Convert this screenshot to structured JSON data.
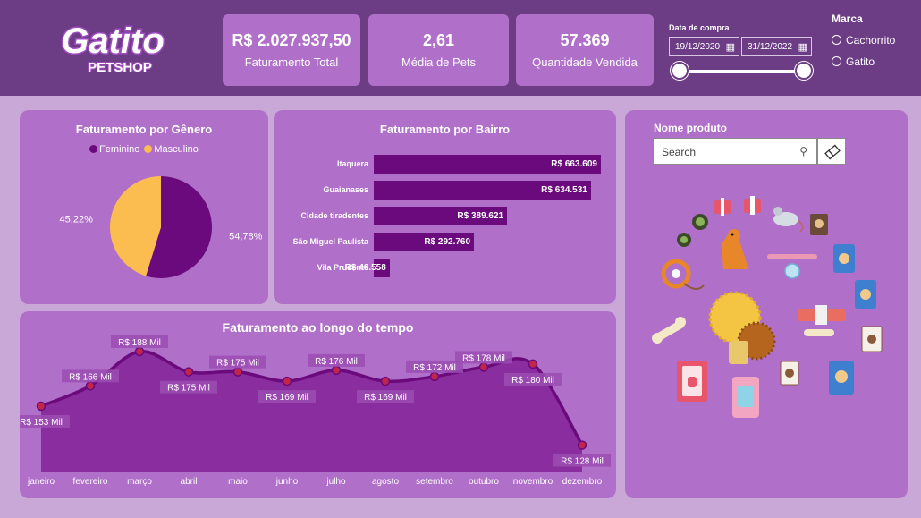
{
  "logo": {
    "name": "Gatito",
    "sub": "PETSHOP"
  },
  "kpis": [
    {
      "value": "R$ 2.027.937,50",
      "label": "Faturamento Total"
    },
    {
      "value": "2,61",
      "label": "Média de Pets"
    },
    {
      "value": "57.369",
      "label": "Quantidade Vendida"
    }
  ],
  "date_filter": {
    "title": "Data de compra",
    "start": "19/12/2020",
    "end": "31/12/2022"
  },
  "marca": {
    "title": "Marca",
    "options": [
      "Cachorrito",
      "Gatito"
    ]
  },
  "genero_card": {
    "title": "Faturamento por Gênero"
  },
  "bairro_card": {
    "title": "Faturamento por Bairro"
  },
  "tempo_card": {
    "title": "Faturamento ao longo do tempo"
  },
  "produto_panel": {
    "title": "Nome produto",
    "search_placeholder": "Search"
  },
  "colors": {
    "header": "#6c3d84",
    "card": "#b06fc8",
    "primary": "#6a0a7c",
    "secondary": "#fbbd4f",
    "background": "#c9a8d8"
  },
  "chart_data": [
    {
      "type": "pie",
      "legend": [
        "Feminino",
        "Masculino"
      ],
      "legend_position": "top",
      "values": [
        54.78,
        45.22
      ],
      "labels": [
        "54,78%",
        "45,22%"
      ]
    },
    {
      "type": "bar",
      "orientation": "horizontal",
      "categories": [
        "Itaquera",
        "Guaianases",
        "Cidade tiradentes",
        "São Miguel Paulista",
        "Vila Prudente"
      ],
      "values": [
        663609,
        634531,
        389621,
        292760,
        46558
      ],
      "labels": [
        "R$ 663.609",
        "R$ 634.531",
        "R$ 389.621",
        "R$ 292.760",
        "R$ 46.558"
      ]
    },
    {
      "type": "area",
      "categories": [
        "janeiro",
        "fevereiro",
        "março",
        "abril",
        "maio",
        "junho",
        "julho",
        "agosto",
        "setembro",
        "outubro",
        "novembro",
        "dezembro"
      ],
      "values": [
        153,
        166,
        188,
        175,
        175,
        169,
        176,
        169,
        172,
        178,
        180,
        128
      ],
      "labels": [
        "R$ 153 Mil",
        "R$ 166 Mil",
        "R$ 188 Mil",
        "R$ 175 Mil",
        "R$ 175 Mil",
        "R$ 169 Mil",
        "R$ 176 Mil",
        "R$ 169 Mil",
        "R$ 172 Mil",
        "R$ 178 Mil",
        "R$ 180 Mil",
        "R$ 128 Mil"
      ],
      "ylim": [
        118,
        192
      ]
    }
  ]
}
